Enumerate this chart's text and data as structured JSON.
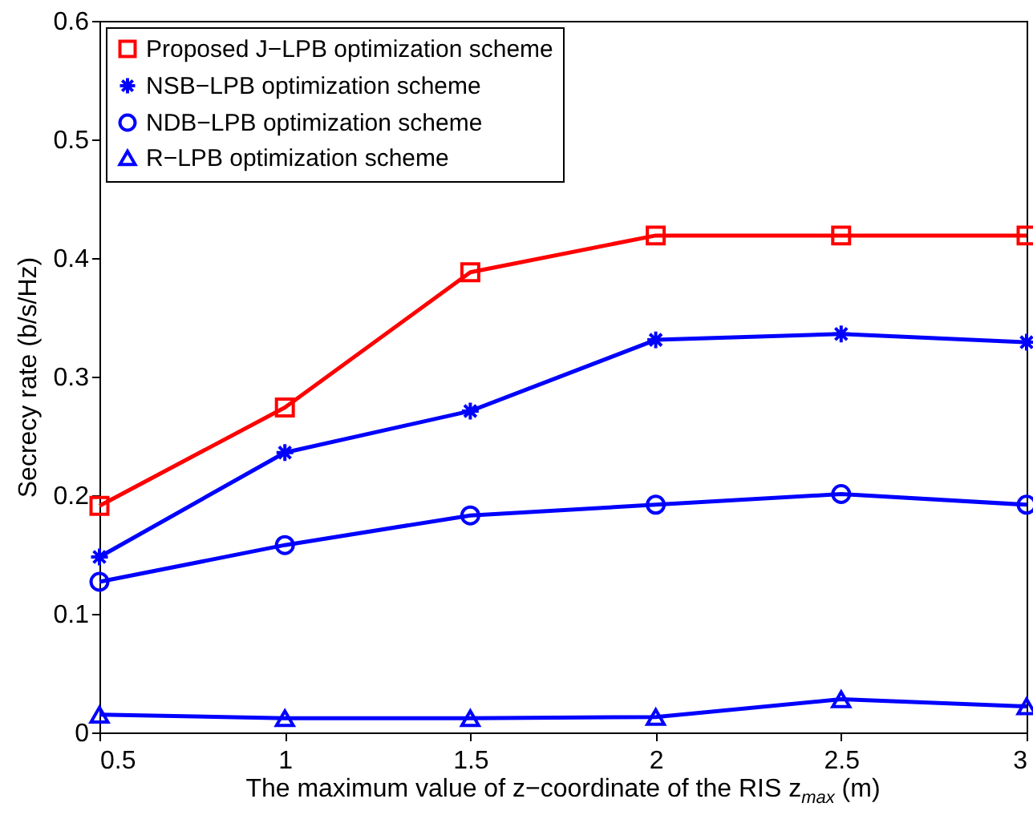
{
  "chart_data": {
    "type": "line",
    "xlabel": "The maximum value of z−coordinate of the RIS z$_{max}$ (m)",
    "ylabel": "Secrecy rate (b/s/Hz)",
    "x": [
      0.5,
      1,
      1.5,
      2,
      2.5,
      3
    ],
    "xlim": [
      0.5,
      3
    ],
    "xticks": [
      0.5,
      1,
      1.5,
      2,
      2.5,
      3
    ],
    "ylim": [
      0,
      0.6
    ],
    "yticks": [
      0,
      0.1,
      0.2,
      0.3,
      0.4,
      0.5,
      0.6
    ],
    "grid": false,
    "legend": "top left",
    "line_style": "solid",
    "series": [
      {
        "name": "Proposed J−LPB optimization scheme",
        "color": "#ff0000",
        "marker": "square",
        "values": [
          0.191,
          0.274,
          0.388,
          0.419,
          0.419,
          0.419
        ]
      },
      {
        "name": "NSB−LPB optimization scheme",
        "color": "#0000ff",
        "marker": "cross",
        "values": [
          0.148,
          0.236,
          0.271,
          0.331,
          0.336,
          0.329
        ]
      },
      {
        "name": "NDB−LPB optimization scheme",
        "color": "#0000ff",
        "marker": "circle",
        "values": [
          0.127,
          0.158,
          0.183,
          0.192,
          0.201,
          0.192
        ]
      },
      {
        "name": "R−LPB optimization scheme",
        "color": "#0000ff",
        "marker": "triangle",
        "values": [
          0.015,
          0.012,
          0.012,
          0.013,
          0.028,
          0.022
        ]
      }
    ]
  }
}
